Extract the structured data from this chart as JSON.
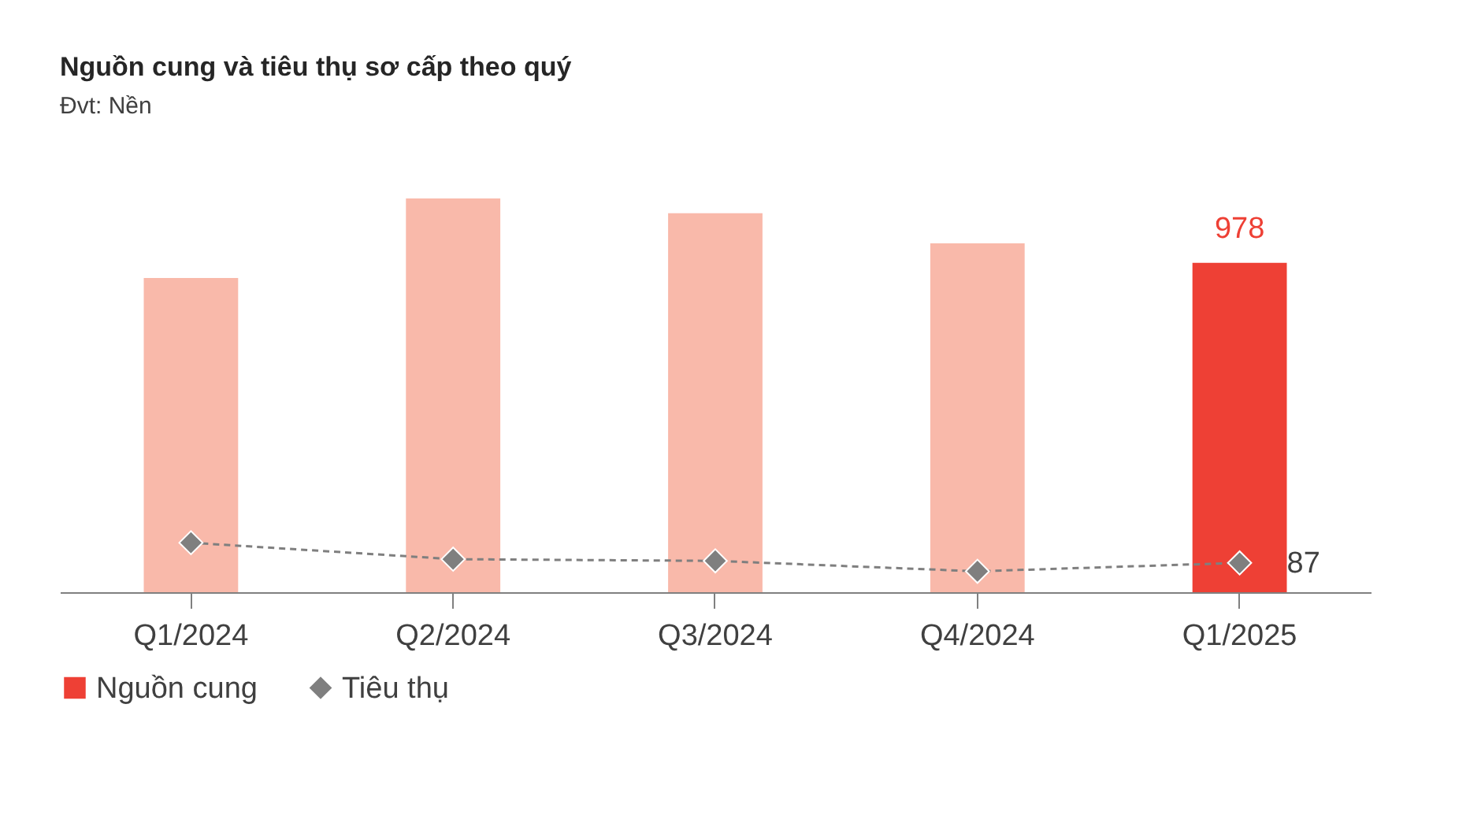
{
  "chart_data": {
    "type": "bar",
    "title": "Nguồn cung và tiêu thụ sơ cấp theo quý",
    "subtitle": "Đvt: Nền",
    "categories": [
      "Q1/2024",
      "Q2/2024",
      "Q3/2024",
      "Q4/2024",
      "Q1/2025"
    ],
    "series": [
      {
        "name": "Nguồn cung",
        "color": "#ee4035",
        "colors": [
          "#f9b9aa",
          "#f9b9aa",
          "#f9b9aa",
          "#f9b9aa",
          "#ee4035"
        ],
        "values": [
          933,
          1169,
          1125,
          1036,
          978
        ],
        "value_labels": [
          null,
          null,
          null,
          null,
          "978"
        ]
      },
      {
        "name": "Tiêu thụ",
        "type": "line",
        "color": "#7f7f7f",
        "marker": "diamond",
        "line_style": "dashed",
        "values": [
          147,
          98,
          93,
          62,
          87
        ],
        "value_labels": [
          null,
          null,
          null,
          null,
          "87"
        ]
      }
    ],
    "legend": "bottom"
  }
}
